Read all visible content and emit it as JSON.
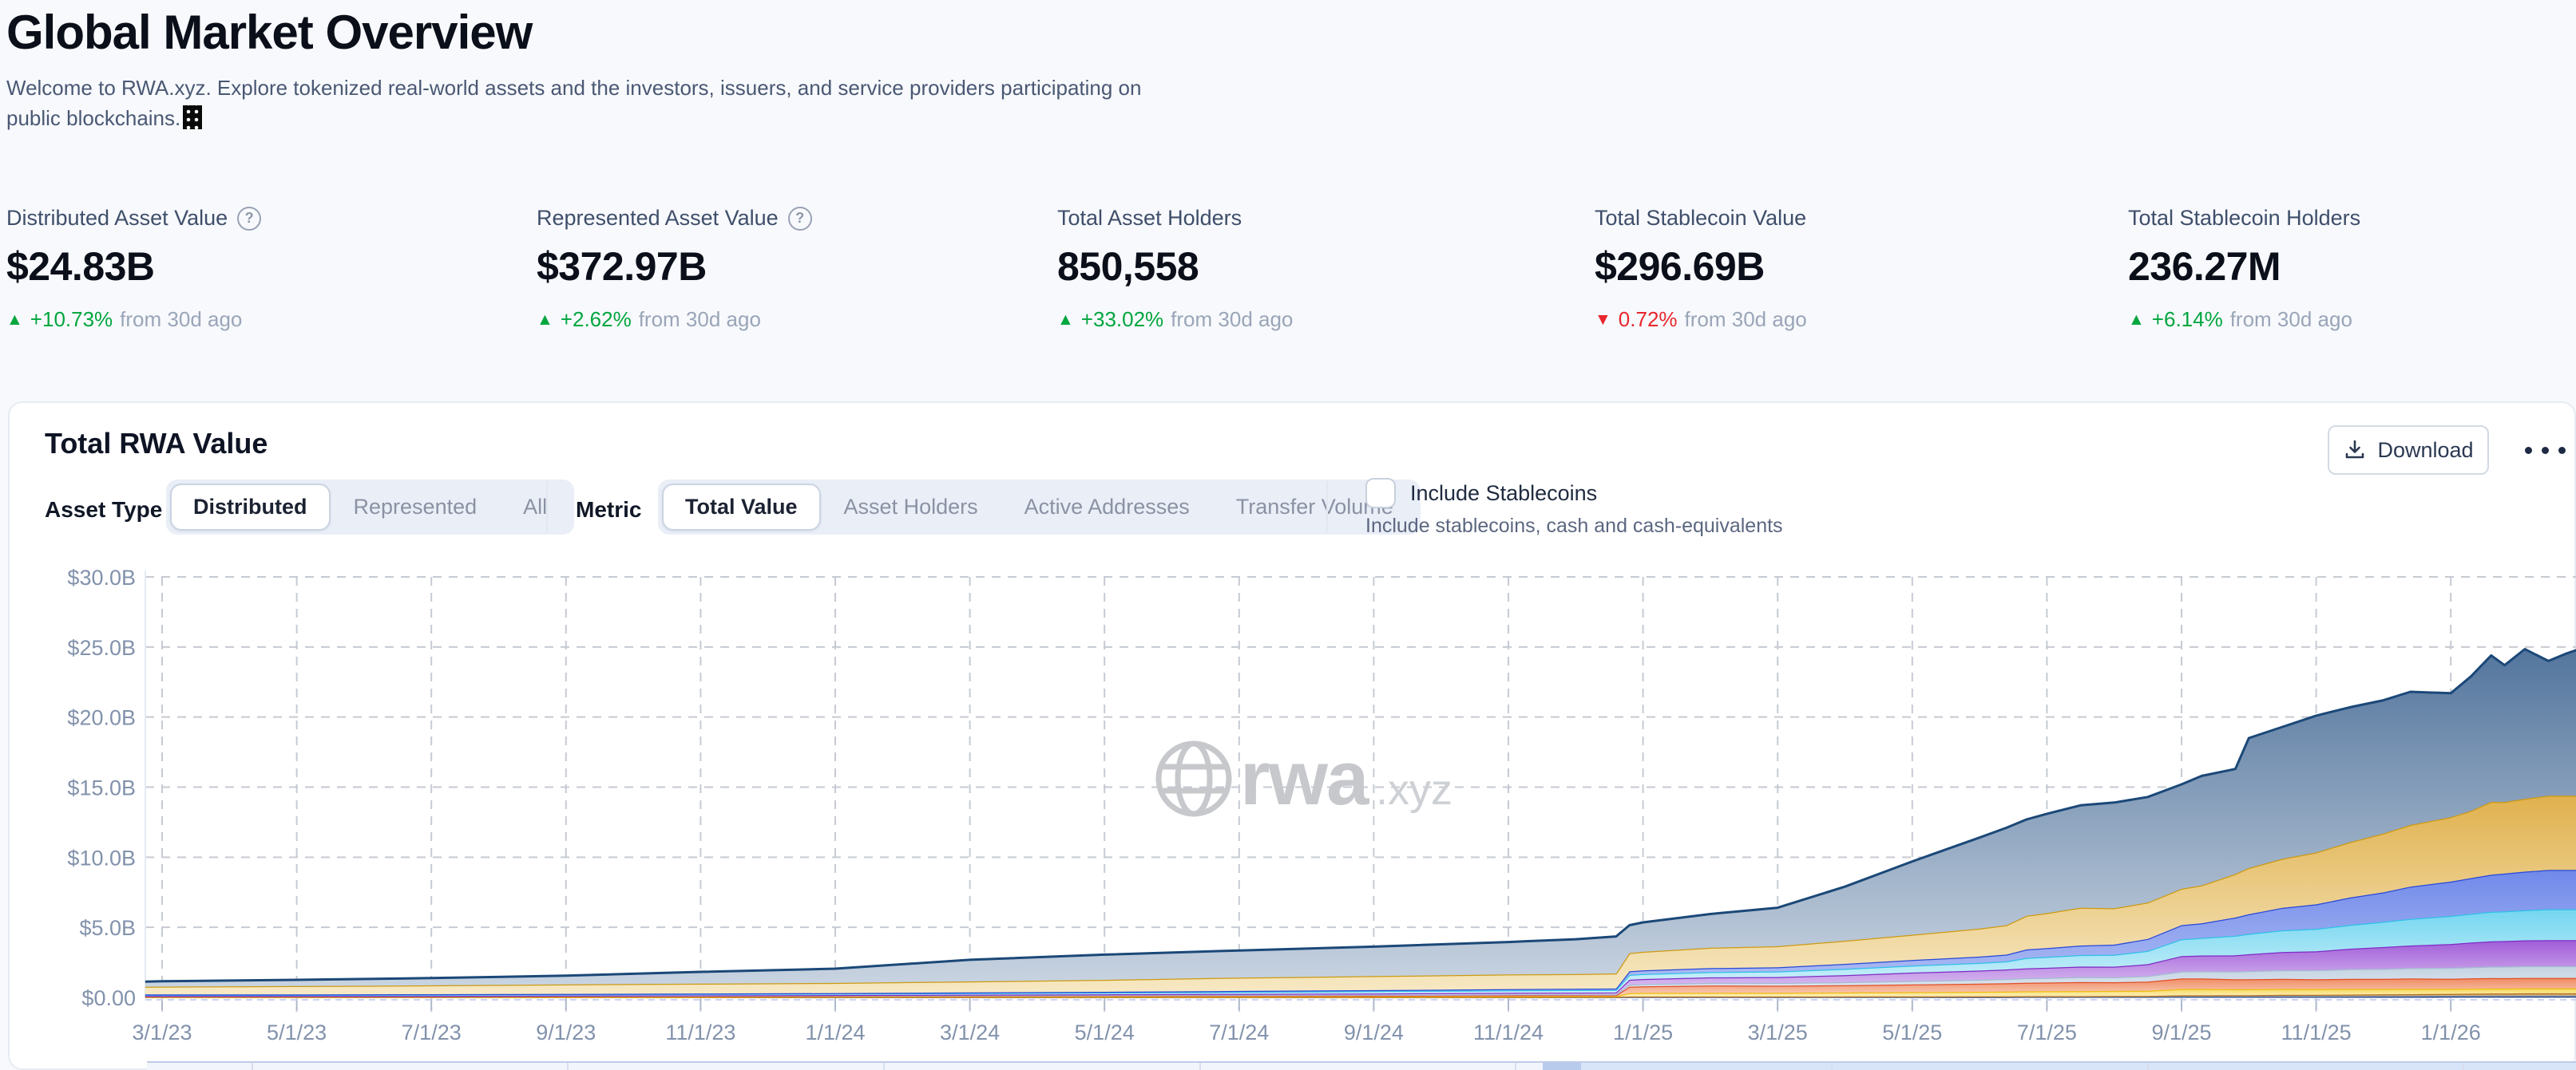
{
  "page": {
    "title": "Global Market Overview",
    "subtitle_line1": "Welcome to RWA.xyz. Explore tokenized real-world assets and the investors, issuers, and service providers participating on",
    "subtitle_line2": "public blockchains."
  },
  "icons": {
    "help": "?",
    "up_arrow": "▲",
    "down_arrow": "▼"
  },
  "stats": [
    {
      "label": "Distributed Asset Value",
      "has_help": true,
      "value": "$24.83B",
      "delta_dir": "up",
      "delta_pct": "+10.73%",
      "delta_suffix": "from 30d ago"
    },
    {
      "label": "Represented Asset Value",
      "has_help": true,
      "value": "$372.97B",
      "delta_dir": "up",
      "delta_pct": "+2.62%",
      "delta_suffix": "from 30d ago"
    },
    {
      "label": "Total Asset Holders",
      "has_help": false,
      "value": "850,558",
      "delta_dir": "up",
      "delta_pct": "+33.02%",
      "delta_suffix": "from 30d ago"
    },
    {
      "label": "Total Stablecoin Value",
      "has_help": false,
      "value": "$296.69B",
      "delta_dir": "down",
      "delta_pct": "0.72%",
      "delta_suffix": "from 30d ago"
    },
    {
      "label": "Total Stablecoin Holders",
      "has_help": false,
      "value": "236.27M",
      "delta_dir": "up",
      "delta_pct": "+6.14%",
      "delta_suffix": "from 30d ago"
    }
  ],
  "card": {
    "title": "Total RWA Value",
    "download_label": "Download",
    "controls": {
      "asset_type": {
        "label": "Asset Type",
        "options": [
          "Distributed",
          "Represented",
          "All"
        ],
        "selected": "Distributed"
      },
      "metric": {
        "label": "Metric",
        "options": [
          "Total Value",
          "Asset Holders",
          "Active Addresses",
          "Transfer Volume"
        ],
        "selected": "Total Value"
      },
      "stablecoins": {
        "label": "Include Stablecoins",
        "sublabel": "Include stablecoins, cash and cash-equivalents",
        "checked": false
      }
    }
  },
  "colors": {
    "accent_green": "#00a63e",
    "accent_red": "#e8262d",
    "grid": "#c6cad2",
    "axis_text": "#8292ac",
    "watermark": "#c6c8cc"
  },
  "chart_data": {
    "type": "area",
    "stacked": true,
    "title": "Total RWA Value",
    "xlabel": "",
    "ylabel": "",
    "ylim": [
      0,
      30
    ],
    "grid": "dashed",
    "legend": "none visible",
    "watermark": "rwa.xyz",
    "y_tick_labels": [
      "$30.0B",
      "$25.0B",
      "$20.0B",
      "$15.0B",
      "$10.0B",
      "$5.0B",
      "$0.00"
    ],
    "y_tick_values": [
      30,
      25,
      20,
      15,
      10,
      5,
      0
    ],
    "x_tick_labels": [
      "3/1/23",
      "5/1/23",
      "7/1/23",
      "9/1/23",
      "11/1/23",
      "1/1/24",
      "3/1/24",
      "5/1/24",
      "7/1/24",
      "9/1/24",
      "11/1/24",
      "1/1/25",
      "3/1/25",
      "5/1/25",
      "7/1/25",
      "9/1/25",
      "11/1/25",
      "1/1/26"
    ],
    "x_unit": "months since 2023-03-01 (tick every 2 months)",
    "x": [
      -0.25,
      0,
      2,
      4,
      6,
      8,
      10,
      12,
      14,
      16,
      18,
      20,
      21,
      21.6,
      21.8,
      22,
      23,
      24,
      25,
      26,
      27,
      27.4,
      27.7,
      28,
      28.5,
      29,
      29.5,
      30,
      30.3,
      30.8,
      31,
      31.5,
      32,
      32.5,
      33,
      33.4,
      34,
      34.3,
      34.6,
      34.8,
      35.1,
      35.45,
      35.7,
      35.9
    ],
    "values_unit": "USD billions, series stacked bottom-to-top",
    "series": [
      {
        "name": "layer-01-navy",
        "stroke": "#16307c",
        "fill_top": "#27408e",
        "fill_bottom": "#27408e",
        "values": [
          0.02,
          0.02,
          0.02,
          0.02,
          0.02,
          0.02,
          0.02,
          0.02,
          0.02,
          0.02,
          0.02,
          0.02,
          0.02,
          0.02,
          0.03,
          0.03,
          0.03,
          0.03,
          0.03,
          0.03,
          0.03,
          0.03,
          0.04,
          0.04,
          0.04,
          0.04,
          0.04,
          0.05,
          0.05,
          0.05,
          0.05,
          0.05,
          0.05,
          0.05,
          0.05,
          0.05,
          0.06,
          0.06,
          0.06,
          0.06,
          0.06,
          0.06,
          0.06,
          0.06
        ]
      },
      {
        "name": "layer-02-gray",
        "stroke": "#8fa1b5",
        "fill_top": "#aebdcb",
        "fill_bottom": "#c2cdd9",
        "values": [
          0,
          0,
          0,
          0,
          0,
          0,
          0.01,
          0.01,
          0.01,
          0.01,
          0.01,
          0.01,
          0.01,
          0.01,
          0.02,
          0.02,
          0.02,
          0.02,
          0.02,
          0.02,
          0.03,
          0.03,
          0.03,
          0.03,
          0.03,
          0.04,
          0.04,
          0.05,
          0.05,
          0.05,
          0.05,
          0.06,
          0.06,
          0.06,
          0.07,
          0.07,
          0.07,
          0.07,
          0.08,
          0.08,
          0.08,
          0.08,
          0.08,
          0.08
        ]
      },
      {
        "name": "layer-03-brown",
        "stroke": "#b06f1f",
        "fill_top": "#cf9a52",
        "fill_bottom": "#e3bd85",
        "values": [
          0,
          0,
          0,
          0,
          0,
          0,
          0,
          0,
          0,
          0,
          0,
          0,
          0.01,
          0.01,
          0.01,
          0.01,
          0.01,
          0.01,
          0.02,
          0.02,
          0.02,
          0.02,
          0.02,
          0.02,
          0.02,
          0.03,
          0.03,
          0.05,
          0.05,
          0.06,
          0.06,
          0.07,
          0.08,
          0.09,
          0.1,
          0.11,
          0.12,
          0.13,
          0.14,
          0.14,
          0.15,
          0.15,
          0.15,
          0.15
        ]
      },
      {
        "name": "layer-04-yellow",
        "stroke": "#edbd11",
        "fill_top": "#f7d75c",
        "fill_bottom": "#fdf2c0",
        "values": [
          0.02,
          0.02,
          0.02,
          0.02,
          0.02,
          0.03,
          0.03,
          0.03,
          0.03,
          0.03,
          0.03,
          0.04,
          0.04,
          0.04,
          0.25,
          0.26,
          0.27,
          0.27,
          0.28,
          0.3,
          0.32,
          0.33,
          0.34,
          0.35,
          0.36,
          0.35,
          0.36,
          0.45,
          0.45,
          0.42,
          0.42,
          0.42,
          0.4,
          0.4,
          0.38,
          0.38,
          0.36,
          0.36,
          0.35,
          0.35,
          0.35,
          0.35,
          0.35,
          0.35
        ]
      },
      {
        "name": "layer-05-red",
        "stroke": "#e14f28",
        "fill_top": "#ee8a61",
        "fill_bottom": "#fbd3bf",
        "values": [
          0.04,
          0.04,
          0.04,
          0.04,
          0.05,
          0.05,
          0.05,
          0.05,
          0.06,
          0.06,
          0.06,
          0.07,
          0.07,
          0.07,
          0.45,
          0.47,
          0.52,
          0.5,
          0.52,
          0.55,
          0.58,
          0.6,
          0.62,
          0.62,
          0.65,
          0.62,
          0.65,
          0.75,
          0.75,
          0.72,
          0.72,
          0.72,
          0.7,
          0.72,
          0.72,
          0.74,
          0.72,
          0.74,
          0.75,
          0.74,
          0.75,
          0.75,
          0.75,
          0.75
        ]
      },
      {
        "name": "layer-06-lightsteel",
        "stroke": "#a4bad2",
        "fill_top": "#c2d1e1",
        "fill_bottom": "#e6ecf4",
        "values": [
          0.02,
          0.02,
          0.02,
          0.02,
          0.03,
          0.03,
          0.03,
          0.04,
          0.04,
          0.05,
          0.06,
          0.07,
          0.07,
          0.07,
          0.15,
          0.16,
          0.18,
          0.2,
          0.22,
          0.25,
          0.28,
          0.3,
          0.32,
          0.33,
          0.35,
          0.36,
          0.4,
          0.5,
          0.52,
          0.55,
          0.58,
          0.62,
          0.65,
          0.7,
          0.72,
          0.75,
          0.78,
          0.8,
          0.82,
          0.83,
          0.84,
          0.85,
          0.85,
          0.85
        ]
      },
      {
        "name": "layer-07-purple",
        "stroke": "#7f2cc4",
        "fill_top": "#a05cd8",
        "fill_bottom": "#e3cdf4",
        "values": [
          0.01,
          0.01,
          0.01,
          0.01,
          0.01,
          0.02,
          0.03,
          0.05,
          0.06,
          0.08,
          0.1,
          0.12,
          0.12,
          0.13,
          0.35,
          0.36,
          0.4,
          0.42,
          0.5,
          0.6,
          0.65,
          0.68,
          0.7,
          0.72,
          0.75,
          0.75,
          0.85,
          1.1,
          1.12,
          1.15,
          1.2,
          1.3,
          1.35,
          1.45,
          1.55,
          1.6,
          1.7,
          1.75,
          1.8,
          1.82,
          1.84,
          1.85,
          1.85,
          1.85
        ]
      },
      {
        "name": "layer-08-cyan",
        "stroke": "#2fc0e8",
        "fill_top": "#74d6f0",
        "fill_bottom": "#d7f3fb",
        "values": [
          0.08,
          0.08,
          0.08,
          0.09,
          0.09,
          0.1,
          0.1,
          0.11,
          0.12,
          0.14,
          0.16,
          0.17,
          0.18,
          0.18,
          0.35,
          0.36,
          0.38,
          0.4,
          0.45,
          0.5,
          0.55,
          0.58,
          0.75,
          0.78,
          0.82,
          0.85,
          0.95,
          1.2,
          1.25,
          1.4,
          1.45,
          1.55,
          1.6,
          1.7,
          1.8,
          1.9,
          2.0,
          2.05,
          2.1,
          2.12,
          2.15,
          2.2,
          2.2,
          2.2
        ]
      },
      {
        "name": "layer-09-blue",
        "stroke": "#2749d8",
        "fill_top": "#7089ea",
        "fill_bottom": "#b5c2f4",
        "values": [
          0.02,
          0.02,
          0.02,
          0.03,
          0.03,
          0.03,
          0.04,
          0.05,
          0.06,
          0.07,
          0.08,
          0.09,
          0.1,
          0.1,
          0.25,
          0.26,
          0.28,
          0.3,
          0.35,
          0.4,
          0.45,
          0.48,
          0.6,
          0.62,
          0.68,
          0.72,
          0.85,
          1.0,
          1.05,
          1.3,
          1.4,
          1.6,
          1.75,
          1.95,
          2.1,
          2.3,
          2.45,
          2.55,
          2.65,
          2.7,
          2.75,
          2.8,
          2.8,
          2.8
        ]
      },
      {
        "name": "layer-10-gold",
        "stroke": "#cc9a12",
        "fill_top": "#e0b14e",
        "fill_bottom": "#f7e9c5",
        "values": [
          0.55,
          0.56,
          0.6,
          0.63,
          0.68,
          0.7,
          0.72,
          0.78,
          0.85,
          0.95,
          1.0,
          1.05,
          1.05,
          1.08,
          1.3,
          1.32,
          1.45,
          1.5,
          1.65,
          1.8,
          2.0,
          2.1,
          2.4,
          2.5,
          2.7,
          2.6,
          2.6,
          2.6,
          2.7,
          3.1,
          3.3,
          3.5,
          3.7,
          3.95,
          4.2,
          4.4,
          4.6,
          4.8,
          5.2,
          5.1,
          5.2,
          5.3,
          5.3,
          5.3
        ]
      },
      {
        "name": "layer-11-steelblue",
        "stroke": "#1b4878",
        "fill_top": "#53759d",
        "fill_bottom": "#c9d4e1",
        "values": [
          0.36,
          0.38,
          0.44,
          0.52,
          0.62,
          0.84,
          1.02,
          1.54,
          1.8,
          1.94,
          2.1,
          2.31,
          2.48,
          2.64,
          1.99,
          2.1,
          2.41,
          2.75,
          3.86,
          5.23,
          6.49,
          6.95,
          6.88,
          7.09,
          7.3,
          7.54,
          7.53,
          7.45,
          7.81,
          7.5,
          9.27,
          9.41,
          9.76,
          9.63,
          9.51,
          9.5,
          8.84,
          9.59,
          10.45,
          9.76,
          10.68,
          9.61,
          10.11,
          10.44
        ]
      }
    ],
    "total_latest": "$24.83B"
  }
}
